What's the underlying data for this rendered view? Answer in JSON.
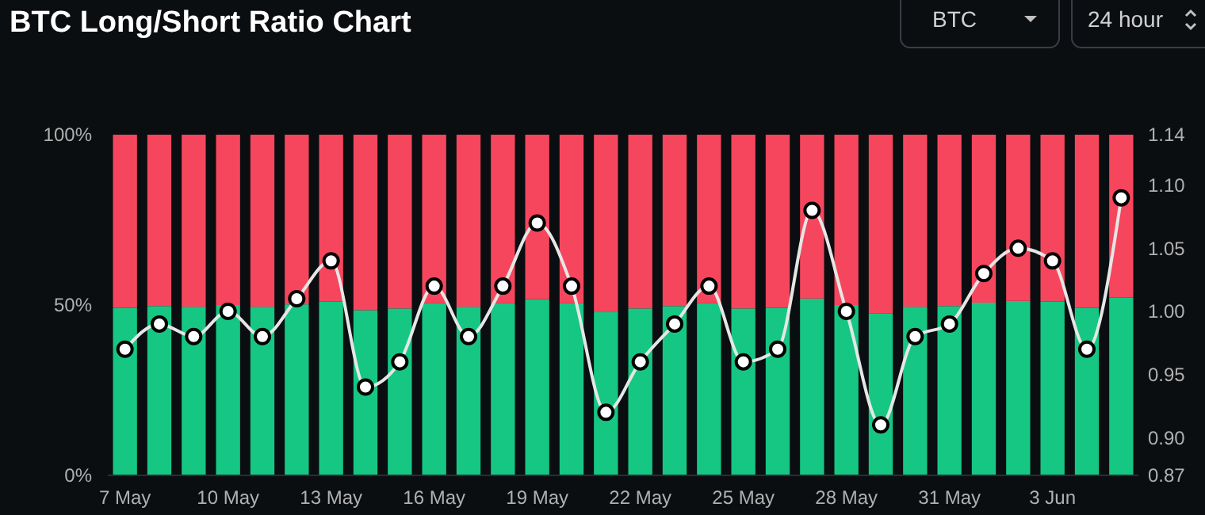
{
  "chart_data": {
    "type": "bar",
    "title": "BTC Long/Short Ratio Chart",
    "annotations": [
      "BTC",
      "24 hour"
    ],
    "categories": [
      "7 May",
      null,
      null,
      "10 May",
      null,
      null,
      "13 May",
      null,
      null,
      "16 May",
      null,
      null,
      "19 May",
      null,
      null,
      "22 May",
      null,
      null,
      "25 May",
      null,
      null,
      "28 May",
      null,
      null,
      "31 May",
      null,
      null,
      "3 Jun",
      null,
      null
    ],
    "stacked": true,
    "ylim": [
      0,
      100
    ],
    "yticks": [
      {
        "value": 0,
        "label": "0%"
      },
      {
        "value": 50,
        "label": "50%"
      },
      {
        "value": 100,
        "label": "100%"
      }
    ],
    "y2lim": [
      0.87,
      1.14
    ],
    "y2ticks": [
      0.87,
      {
        "value": 0.9,
        "label": "0.90"
      },
      0.95,
      {
        "value": 1,
        "label": "1.00"
      },
      1.05,
      {
        "value": 1.1,
        "label": "1.10"
      },
      1.14
    ],
    "series": [
      {
        "color": "#16c784",
        "values": [
          49.2,
          49.7,
          49.5,
          50.0,
          49.5,
          50.2,
          51.0,
          48.5,
          49.0,
          50.5,
          49.5,
          50.5,
          51.7,
          50.5,
          47.9,
          49.0,
          49.7,
          50.5,
          49.0,
          49.2,
          51.9,
          50.0,
          47.6,
          49.5,
          49.7,
          50.7,
          51.2,
          51.0,
          49.2,
          52.2
        ]
      },
      {
        "color": "#f6465d",
        "values": [
          50.8,
          50.3,
          50.5,
          50.0,
          50.5,
          49.8,
          49.0,
          51.5,
          51.0,
          49.5,
          50.5,
          49.5,
          48.3,
          49.5,
          52.1,
          51.0,
          50.3,
          49.5,
          51.0,
          50.8,
          48.1,
          50.0,
          52.4,
          50.5,
          50.3,
          49.3,
          48.8,
          49.0,
          50.8,
          47.8
        ]
      },
      {
        "type": "line",
        "axis": "y2",
        "color": "#e6e6e6",
        "marker": "circle",
        "values": [
          0.97,
          0.99,
          0.98,
          1.0,
          0.98,
          1.01,
          1.04,
          0.94,
          0.96,
          1.02,
          0.98,
          1.02,
          1.07,
          1.02,
          0.92,
          0.96,
          0.99,
          1.02,
          0.96,
          0.97,
          1.08,
          1.0,
          0.91,
          0.98,
          0.99,
          1.03,
          1.05,
          1.04,
          0.97,
          1.09
        ]
      }
    ]
  }
}
